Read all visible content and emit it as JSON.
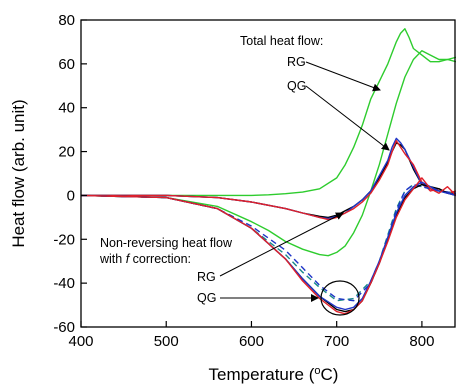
{
  "chart_data": {
    "type": "line",
    "title": "",
    "xlabel_parts": {
      "prefix": "Temperature (",
      "sup": "o",
      "suffix": "C)"
    },
    "ylabel": "Heat flow (arb. unit)",
    "xlim": [
      400,
      840
    ],
    "ylim": [
      -60,
      80
    ],
    "xticks": [
      400,
      500,
      600,
      700,
      800
    ],
    "yticks": [
      -60,
      -40,
      -20,
      0,
      20,
      40,
      60,
      80
    ],
    "grid": false,
    "annotations": {
      "total_title": "Total heat flow:",
      "total_rg": "RG",
      "total_qg": "QG",
      "nonrev_line1": "Non-reversing heat flow",
      "nonrev_line2_pre": "with ",
      "nonrev_line2_italic": "f",
      "nonrev_line2_post": " correction:",
      "nonrev_rg": "RG",
      "nonrev_qg": "QG"
    },
    "colors": {
      "green": "#2ecc2e",
      "black": "#000000",
      "blue": "#1f35c7",
      "red": "#e0202a",
      "teal": "#1a8a8a"
    },
    "series": [
      {
        "color": "green",
        "style": "solid",
        "x": [
          400,
          500,
          560,
          600,
          620,
          640,
          660,
          680,
          700,
          710,
          720,
          730,
          740,
          750,
          760,
          770,
          775,
          780,
          785,
          790,
          800,
          810,
          820,
          830,
          840
        ],
        "y": [
          0,
          0,
          0,
          0,
          0.3,
          0.8,
          1.5,
          3,
          8,
          14,
          22,
          32,
          44,
          52,
          60,
          70,
          74,
          76,
          72,
          67,
          64,
          61,
          61,
          62,
          61
        ]
      },
      {
        "color": "green",
        "style": "solid",
        "x": [
          400,
          500,
          560,
          600,
          620,
          640,
          660,
          680,
          690,
          700,
          710,
          720,
          730,
          740,
          750,
          760,
          770,
          780,
          790,
          800,
          810,
          820,
          830,
          840
        ],
        "y": [
          0,
          -1,
          -5,
          -12,
          -16,
          -21,
          -24.5,
          -27,
          -27.5,
          -26,
          -23,
          -17,
          -9,
          2,
          14,
          28,
          42,
          54,
          62,
          66,
          64,
          62,
          62,
          63
        ]
      },
      {
        "color": "black",
        "style": "solid",
        "x": [
          400,
          500,
          560,
          600,
          640,
          660,
          680,
          690,
          700,
          710,
          720,
          730,
          740,
          750,
          760,
          765,
          770,
          775,
          780,
          790,
          800,
          810,
          820,
          830,
          840
        ],
        "y": [
          0,
          0,
          -1,
          -3,
          -6,
          -8,
          -9.5,
          -10,
          -9,
          -7,
          -5,
          -2,
          2,
          8,
          15,
          20,
          24,
          23,
          21,
          12,
          5,
          3,
          2,
          1.5,
          1
        ]
      },
      {
        "color": "blue",
        "style": "solid",
        "x": [
          400,
          500,
          560,
          600,
          640,
          660,
          680,
          690,
          700,
          710,
          720,
          730,
          740,
          750,
          760,
          765,
          770,
          775,
          780,
          790,
          800,
          810,
          820,
          830,
          840
        ],
        "y": [
          0,
          0,
          -1,
          -3,
          -6,
          -8,
          -10,
          -10.5,
          -9.5,
          -8,
          -5,
          -2,
          2,
          9,
          16,
          22,
          26,
          24,
          21,
          13,
          5,
          3,
          2,
          1,
          0.5
        ]
      },
      {
        "color": "red",
        "style": "solid",
        "x": [
          400,
          500,
          560,
          600,
          640,
          660,
          680,
          690,
          700,
          710,
          720,
          730,
          740,
          750,
          760,
          765,
          770,
          775,
          780,
          790,
          800,
          810,
          820,
          830,
          840
        ],
        "y": [
          0,
          0,
          -1,
          -3,
          -6,
          -8,
          -10,
          -11,
          -10,
          -8,
          -6,
          -3,
          1,
          7,
          14,
          20,
          25,
          22,
          19,
          14,
          6,
          2,
          3,
          1,
          2
        ]
      },
      {
        "color": "teal",
        "style": "dashed",
        "x": [
          400,
          500,
          560,
          600,
          640,
          660,
          680,
          700,
          720,
          740,
          750,
          760,
          770,
          780,
          790,
          800,
          810,
          820,
          840
        ],
        "y": [
          0,
          -1,
          -6,
          -15,
          -27,
          -35,
          -42,
          -48,
          -47,
          -39,
          -30,
          -18,
          -6,
          2,
          5,
          4,
          3,
          2,
          1
        ]
      },
      {
        "color": "blue",
        "style": "dashed",
        "x": [
          400,
          500,
          560,
          600,
          640,
          660,
          680,
          700,
          720,
          740,
          750,
          760,
          770,
          780,
          790,
          800,
          810,
          820,
          840
        ],
        "y": [
          0,
          -1,
          -6,
          -14,
          -25,
          -33,
          -41,
          -47,
          -48,
          -40,
          -31,
          -19,
          -7,
          2,
          5,
          4,
          3,
          2,
          1
        ]
      },
      {
        "color": "black",
        "style": "solid",
        "x": [
          400,
          500,
          560,
          600,
          640,
          660,
          680,
          700,
          710,
          720,
          730,
          740,
          750,
          760,
          770,
          780,
          790,
          800,
          810,
          820,
          830,
          840
        ],
        "y": [
          0,
          -1,
          -6,
          -15,
          -29,
          -38,
          -46,
          -52,
          -53,
          -52,
          -48,
          -40,
          -31,
          -20,
          -9,
          -1,
          3,
          5,
          4,
          3,
          1,
          0
        ]
      },
      {
        "color": "blue",
        "style": "solid",
        "x": [
          400,
          500,
          560,
          600,
          640,
          660,
          680,
          700,
          710,
          720,
          730,
          740,
          750,
          760,
          770,
          780,
          790,
          800,
          810,
          820,
          830,
          840
        ],
        "y": [
          0,
          -1,
          -6,
          -15,
          -29,
          -38,
          -46,
          -51,
          -52,
          -51,
          -47,
          -39,
          -30,
          -19,
          -8,
          0,
          4,
          6,
          4,
          2,
          1,
          0
        ]
      },
      {
        "color": "red",
        "style": "solid",
        "x": [
          400,
          500,
          560,
          600,
          640,
          660,
          680,
          700,
          710,
          720,
          730,
          740,
          750,
          760,
          770,
          780,
          790,
          800,
          810,
          820,
          830,
          840
        ],
        "y": [
          0,
          -1,
          -6,
          -15,
          -29,
          -39,
          -47,
          -53,
          -54,
          -52,
          -48,
          -40,
          -31,
          -21,
          -10,
          -2,
          3,
          8,
          3,
          1,
          4,
          0
        ]
      }
    ]
  }
}
